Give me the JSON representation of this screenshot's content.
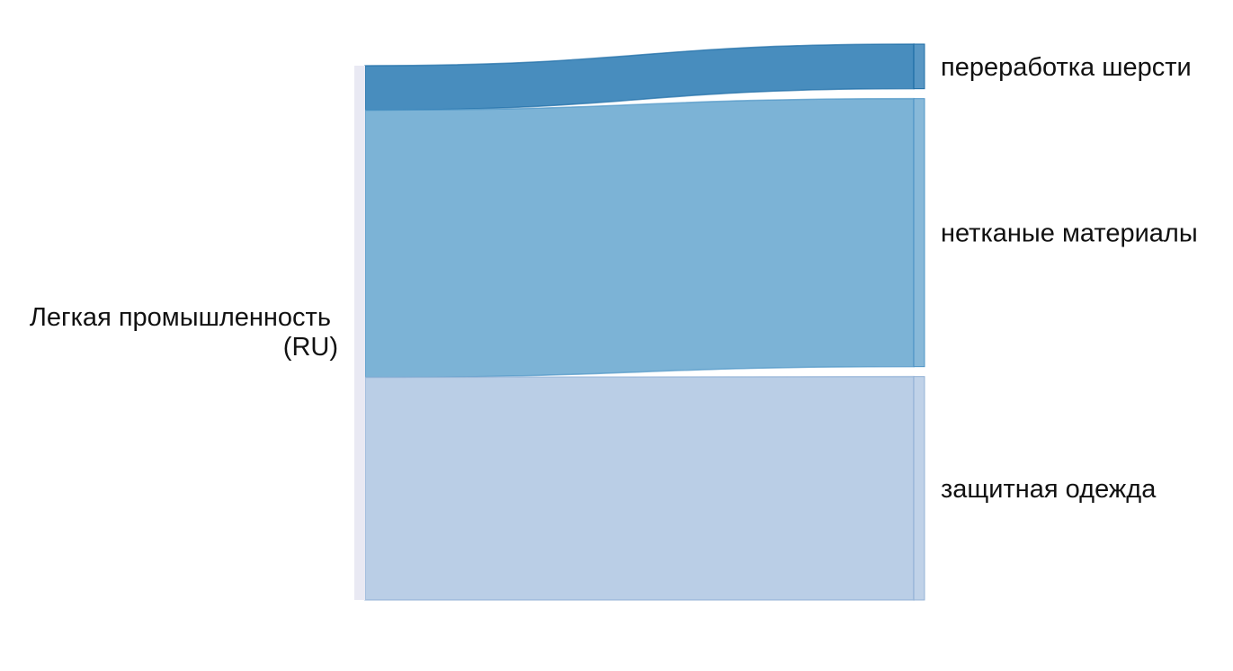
{
  "diagram": {
    "type": "sankey",
    "source": {
      "label_line1": "Легкая промышленность",
      "label_line2": "(RU)",
      "color": "#e9e9f3"
    },
    "targets": [
      {
        "label": "переработка шерсти",
        "value": 1,
        "color": "#2f7db5",
        "border": "#1f6ea6"
      },
      {
        "label": "нетканые материалы",
        "value": 6,
        "color": "#6aa8d0",
        "border": "#4f95c6"
      },
      {
        "label": "защитная одежда",
        "value": 5,
        "color": "#b0c7e2",
        "border": "#93b2d6"
      }
    ]
  }
}
